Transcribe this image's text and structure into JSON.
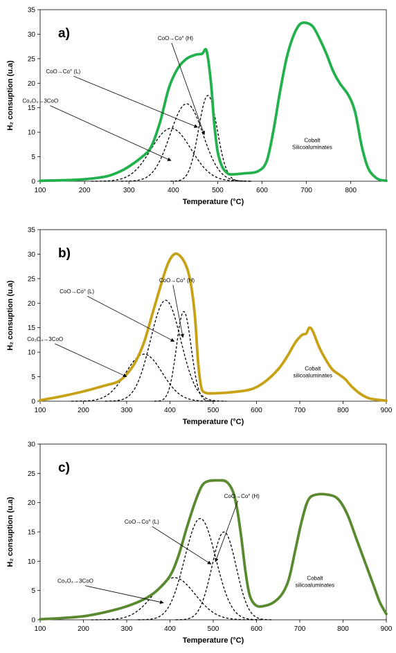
{
  "chart_data": [
    {
      "type": "line",
      "panel_label": "a)",
      "xlabel": "Temperature (°C)",
      "ylabel": "H₂ consuption (u.a)",
      "xlim": [
        100,
        880
      ],
      "ylim": [
        0,
        35
      ],
      "xticks": [
        100,
        200,
        300,
        400,
        500,
        600,
        700,
        800
      ],
      "yticks": [
        0,
        5,
        10,
        15,
        20,
        25,
        30,
        35
      ],
      "grid": false,
      "main_color": "#22b14c",
      "main_series": [
        [
          100,
          0.1
        ],
        [
          150,
          0.2
        ],
        [
          200,
          0.4
        ],
        [
          250,
          1
        ],
        [
          280,
          2
        ],
        [
          300,
          3
        ],
        [
          330,
          5
        ],
        [
          350,
          7
        ],
        [
          370,
          12
        ],
        [
          390,
          19
        ],
        [
          410,
          23
        ],
        [
          430,
          25
        ],
        [
          450,
          25.8
        ],
        [
          465,
          26
        ],
        [
          475,
          26.6
        ],
        [
          485,
          20
        ],
        [
          492,
          12
        ],
        [
          500,
          6
        ],
        [
          510,
          3
        ],
        [
          520,
          1.8
        ],
        [
          530,
          1.4
        ],
        [
          560,
          1.6
        ],
        [
          590,
          2
        ],
        [
          610,
          4
        ],
        [
          625,
          10
        ],
        [
          640,
          18
        ],
        [
          655,
          25
        ],
        [
          670,
          29.5
        ],
        [
          685,
          32
        ],
        [
          700,
          32.3
        ],
        [
          715,
          31.5
        ],
        [
          730,
          29
        ],
        [
          745,
          26
        ],
        [
          760,
          22.5
        ],
        [
          775,
          20
        ],
        [
          795,
          17.5
        ],
        [
          810,
          14
        ],
        [
          825,
          7
        ],
        [
          840,
          2.5
        ],
        [
          860,
          0.5
        ],
        [
          880,
          0.1
        ]
      ],
      "components": [
        {
          "center": 395,
          "height": 10.8,
          "width": 45
        },
        {
          "center": 430,
          "height": 15.8,
          "width": 37
        },
        {
          "center": 478,
          "height": 17.5,
          "width": 21
        }
      ],
      "annotations": [
        {
          "lines": [
            "Co₃O₄→3CoO"
          ],
          "text_x": 60,
          "text_y": 16,
          "arrow_to": [
            395,
            4.2
          ]
        },
        {
          "lines": [
            "CoO→Co° (L)"
          ],
          "text_x": 113,
          "text_y": 22,
          "arrow_to": [
            455,
            11
          ]
        },
        {
          "lines": [
            "CoO→Co° (H)"
          ],
          "text_x": 365,
          "text_y": 28.8,
          "arrow_to": [
            470,
            9.5
          ]
        },
        {
          "lines": [
            "Cobalt",
            "Silicoaluminates"
          ],
          "text_x": 713,
          "text_y": 8,
          "arrow_to": null
        }
      ]
    },
    {
      "type": "line",
      "panel_label": "b)",
      "xlabel": "Temperature (°C)",
      "ylabel": "H₂ consuption (u.a)",
      "xlim": [
        100,
        900
      ],
      "ylim": [
        0,
        35
      ],
      "xticks": [
        100,
        200,
        300,
        400,
        500,
        600,
        700,
        800,
        900
      ],
      "yticks": [
        0,
        5,
        10,
        15,
        20,
        25,
        30,
        35
      ],
      "grid": false,
      "main_color": "#c8a216",
      "main_series": [
        [
          100,
          0.2
        ],
        [
          150,
          1
        ],
        [
          200,
          2
        ],
        [
          250,
          3.2
        ],
        [
          280,
          4
        ],
        [
          300,
          5.5
        ],
        [
          320,
          8
        ],
        [
          340,
          12
        ],
        [
          360,
          18
        ],
        [
          380,
          24
        ],
        [
          395,
          28
        ],
        [
          410,
          30
        ],
        [
          425,
          29.5
        ],
        [
          440,
          27
        ],
        [
          450,
          23
        ],
        [
          458,
          17
        ],
        [
          465,
          8
        ],
        [
          472,
          3
        ],
        [
          480,
          1.8
        ],
        [
          500,
          1.6
        ],
        [
          550,
          1.9
        ],
        [
          590,
          2.5
        ],
        [
          620,
          4
        ],
        [
          650,
          6.5
        ],
        [
          670,
          9
        ],
        [
          690,
          12
        ],
        [
          705,
          13.5
        ],
        [
          715,
          13.8
        ],
        [
          722,
          15
        ],
        [
          730,
          14.3
        ],
        [
          745,
          11
        ],
        [
          760,
          8.5
        ],
        [
          775,
          6.5
        ],
        [
          790,
          5.5
        ],
        [
          805,
          4.5
        ],
        [
          820,
          3
        ],
        [
          840,
          1.5
        ],
        [
          860,
          0.6
        ],
        [
          880,
          0.3
        ],
        [
          900,
          0.1
        ]
      ],
      "components": [
        {
          "center": 340,
          "height": 9.6,
          "width": 42
        },
        {
          "center": 390,
          "height": 20.6,
          "width": 35
        },
        {
          "center": 432,
          "height": 18.3,
          "width": 17
        }
      ],
      "annotations": [
        {
          "lines": [
            "Co₃O₄→3CoO"
          ],
          "text_x": 70,
          "text_y": 12.3,
          "arrow_to": [
            300,
            5
          ]
        },
        {
          "lines": [
            "CoO→Co° (L)"
          ],
          "text_x": 145,
          "text_y": 22,
          "arrow_to": [
            410,
            12.2
          ]
        },
        {
          "lines": [
            "CoO→Co° (H)"
          ],
          "text_x": 375,
          "text_y": 24.3,
          "arrow_to": [
            430,
            13
          ]
        },
        {
          "lines": [
            "Cobalt",
            "silicoaluminates"
          ],
          "text_x": 730,
          "text_y": 6.3,
          "arrow_to": null
        }
      ]
    },
    {
      "type": "line",
      "panel_label": "c)",
      "xlabel": "Temperature (°C)",
      "ylabel": "H₂ consuption (u.a)",
      "xlim": [
        100,
        900
      ],
      "ylim": [
        0,
        30
      ],
      "xticks": [
        100,
        200,
        300,
        400,
        500,
        600,
        700,
        800,
        900
      ],
      "yticks": [
        0,
        5,
        10,
        15,
        20,
        25,
        30
      ],
      "grid": false,
      "main_color": "#5a8a30",
      "main_series": [
        [
          100,
          0.1
        ],
        [
          150,
          0.3
        ],
        [
          200,
          0.6
        ],
        [
          250,
          1.3
        ],
        [
          300,
          2.3
        ],
        [
          340,
          3.5
        ],
        [
          370,
          5
        ],
        [
          400,
          7.5
        ],
        [
          420,
          11
        ],
        [
          440,
          16
        ],
        [
          460,
          20.5
        ],
        [
          475,
          23
        ],
        [
          490,
          23.7
        ],
        [
          510,
          23.8
        ],
        [
          530,
          23.6
        ],
        [
          545,
          22
        ],
        [
          555,
          19
        ],
        [
          565,
          14
        ],
        [
          575,
          8
        ],
        [
          585,
          4
        ],
        [
          600,
          2.4
        ],
        [
          620,
          2.4
        ],
        [
          640,
          3
        ],
        [
          660,
          4.5
        ],
        [
          675,
          7
        ],
        [
          690,
          12
        ],
        [
          705,
          17
        ],
        [
          720,
          20.5
        ],
        [
          740,
          21.4
        ],
        [
          770,
          21.3
        ],
        [
          790,
          20.5
        ],
        [
          810,
          18
        ],
        [
          830,
          14
        ],
        [
          850,
          10
        ],
        [
          870,
          6
        ],
        [
          885,
          3
        ],
        [
          900,
          1
        ]
      ],
      "components": [
        {
          "center": 410,
          "height": 7.2,
          "width": 48
        },
        {
          "center": 470,
          "height": 17.3,
          "width": 36
        },
        {
          "center": 525,
          "height": 15,
          "width": 28
        }
      ],
      "annotations": [
        {
          "lines": [
            "Co₃O₄→3CoO"
          ],
          "text_x": 140,
          "text_y": 6.3,
          "arrow_to": [
            385,
            2.9
          ]
        },
        {
          "lines": [
            "CoO→Co° (L)"
          ],
          "text_x": 295,
          "text_y": 16.4,
          "arrow_to": [
            495,
            9.5
          ]
        },
        {
          "lines": [
            "CoO→Co° (H)"
          ],
          "text_x": 525,
          "text_y": 20.8,
          "arrow_to": [
            505,
            9.9
          ]
        },
        {
          "lines": [
            "Cobalt",
            "silicoaluminates"
          ],
          "text_x": 735,
          "text_y": 6.8,
          "arrow_to": null
        }
      ]
    }
  ]
}
